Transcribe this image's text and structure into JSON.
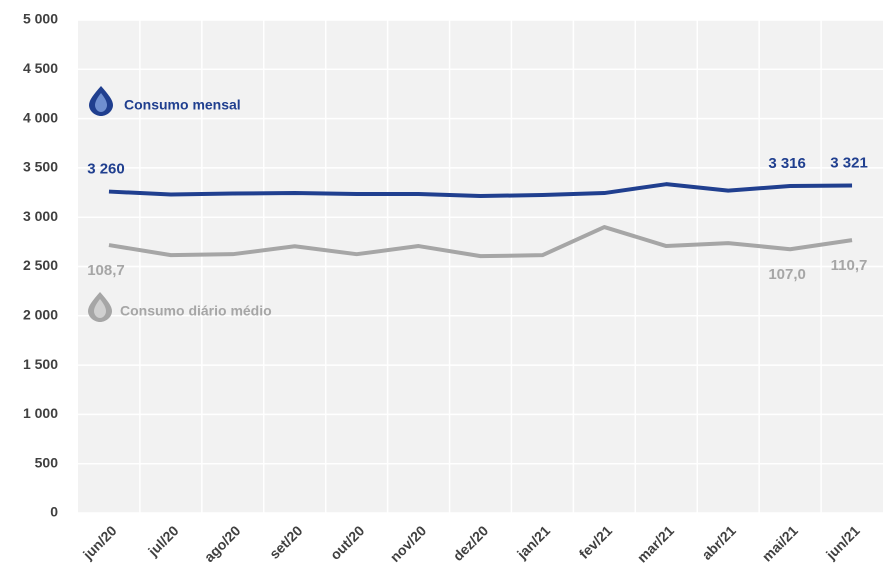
{
  "chart_data": {
    "type": "line",
    "categories": [
      "jun/20",
      "jul/20",
      "ago/20",
      "set/20",
      "out/20",
      "nov/20",
      "dez/20",
      "jan/21",
      "fev/21",
      "mar/21",
      "abr/21",
      "mai/21",
      "jun/21"
    ],
    "series": [
      {
        "name": "Consumo mensal",
        "color": "#203f8f",
        "axis": "y",
        "values": [
          3260,
          3230,
          3240,
          3245,
          3235,
          3235,
          3215,
          3225,
          3245,
          3335,
          3270,
          3316,
          3321
        ],
        "value_labels": [
          "3 260",
          null,
          null,
          null,
          null,
          null,
          null,
          null,
          null,
          null,
          null,
          "3 316",
          "3 321"
        ]
      },
      {
        "name": "Consumo diário médio",
        "color": "#a6a6a6",
        "axis": "y2",
        "values": [
          108.7,
          104.6,
          105.0,
          108.2,
          105.0,
          108.3,
          104.2,
          104.6,
          116.0,
          108.3,
          109.5,
          107.0,
          110.7
        ],
        "value_labels": [
          "108,7",
          null,
          null,
          null,
          null,
          null,
          null,
          null,
          null,
          null,
          null,
          "107,0",
          "110,7"
        ]
      }
    ],
    "ylim": [
      0,
      5000
    ],
    "yticks": [
      0,
      500,
      {
        "value": 1000,
        "label": "1 000"
      },
      {
        "value": 1500,
        "label": "1 500"
      },
      {
        "value": 2000,
        "label": "2 000"
      },
      {
        "value": 2500,
        "label": "2 500"
      },
      {
        "value": 3000,
        "label": "3 000"
      },
      {
        "value": 3500,
        "label": "3 500"
      },
      {
        "value": 4000,
        "label": "4 000"
      },
      {
        "value": 4500,
        "label": "4 500"
      },
      {
        "value": 5000,
        "label": "5 000"
      }
    ],
    "y2lim": [
      0,
      200
    ],
    "grid": true
  }
}
